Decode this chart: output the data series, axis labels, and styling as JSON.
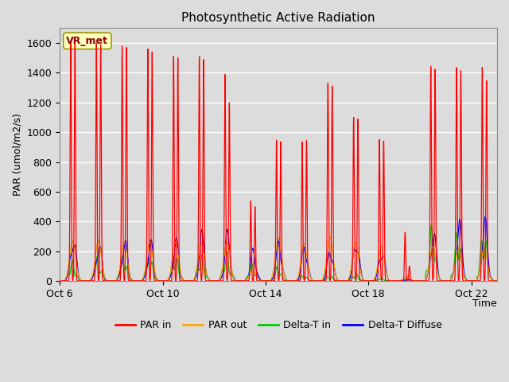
{
  "title": "Photosynthetic Active Radiation",
  "ylabel": "PAR (umol/m2/s)",
  "xlabel": "Time",
  "annotation": "VR_met",
  "x_ticks": [
    "Oct 6",
    "Oct 10",
    "Oct 14",
    "Oct 18",
    "Oct 22"
  ],
  "x_tick_positions": [
    0,
    4,
    8,
    12,
    16
  ],
  "ylim": [
    0,
    1700
  ],
  "yticks": [
    0,
    200,
    400,
    600,
    800,
    1000,
    1200,
    1400,
    1600
  ],
  "colors": {
    "par_in": "#FF0000",
    "par_out": "#FFA500",
    "delta_t_in": "#00CC00",
    "delta_t_diffuse": "#0000FF"
  },
  "legend": [
    "PAR in",
    "PAR out",
    "Delta-T in",
    "Delta-T Diffuse"
  ],
  "fig_bg": "#DCDCDC",
  "plot_bg": "#DCDCDC",
  "num_days": 17,
  "figsize": [
    6.4,
    4.8
  ],
  "dpi": 100,
  "day_peaks_par_in": [
    1600,
    1600,
    1580,
    1560,
    1510,
    1510,
    1390,
    540,
    950,
    940,
    1340,
    1110,
    960,
    330,
    1450,
    1440,
    1440
  ],
  "day_peaks_par_in2": [
    1600,
    1590,
    1570,
    1540,
    1500,
    1490,
    1200,
    500,
    940,
    950,
    1320,
    1100,
    950,
    100,
    1430,
    1420,
    1350
  ],
  "day_peaks_par_out": [
    270,
    270,
    260,
    260,
    260,
    250,
    260,
    75,
    290,
    250,
    300,
    260,
    230,
    30,
    230,
    220,
    220
  ],
  "day_peaks_delta_t_in": [
    140,
    170,
    185,
    190,
    190,
    190,
    195,
    120,
    100,
    40,
    40,
    55,
    20,
    20,
    390,
    370,
    370
  ],
  "day_peaks_delta_t_diff": [
    340,
    290,
    310,
    295,
    295,
    345,
    350,
    230,
    300,
    280,
    260,
    330,
    250,
    10,
    380,
    460,
    450
  ]
}
